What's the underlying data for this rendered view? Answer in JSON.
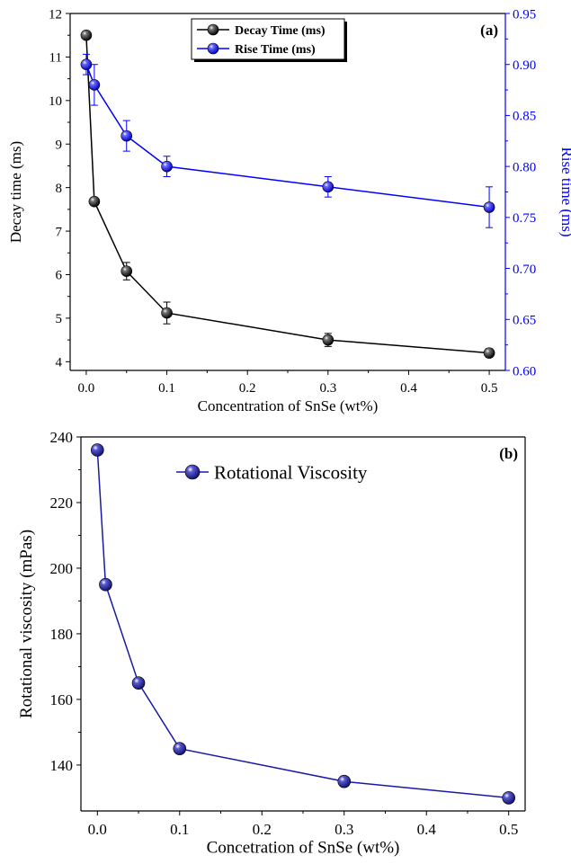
{
  "chart_data": [
    {
      "type": "line",
      "panel_label": "(a)",
      "xlabel": "Concentration of SnSe (wt%)",
      "ylabel": "Decay time (ms)",
      "y2label": "Rise time (ms)",
      "xlim": [
        -0.02,
        0.52
      ],
      "ylim": [
        3.8,
        12
      ],
      "y2lim": [
        0.6,
        0.95
      ],
      "xticks": [
        0.0,
        0.1,
        0.2,
        0.3,
        0.4,
        0.5
      ],
      "xtick_labels": [
        "0.0",
        "0.1",
        "0.2",
        "0.3",
        "0.4",
        "0.5"
      ],
      "yticks": [
        4,
        5,
        6,
        7,
        8,
        9,
        10,
        11,
        12
      ],
      "ytick_labels": [
        "4",
        "5",
        "6",
        "7",
        "8",
        "9",
        "10",
        "11",
        "12"
      ],
      "y2ticks": [
        0.6,
        0.65,
        0.7,
        0.75,
        0.8,
        0.85,
        0.9,
        0.95
      ],
      "y2tick_labels": [
        "0.60",
        "0.65",
        "0.70",
        "0.75",
        "0.80",
        "0.85",
        "0.90",
        "0.95"
      ],
      "legend_placement": "top-center",
      "grid": false,
      "series": [
        {
          "name": "Decay Time (ms)",
          "axis": "left",
          "color": "#000000",
          "x": [
            0.0,
            0.01,
            0.05,
            0.1,
            0.3,
            0.5
          ],
          "y": [
            11.5,
            7.68,
            6.08,
            5.12,
            4.5,
            4.2
          ],
          "error": [
            0.0,
            0.0,
            0.2,
            0.25,
            0.15,
            0.1
          ]
        },
        {
          "name": "Rise Time (ms)",
          "axis": "right",
          "color": "#0000ff",
          "x": [
            0.0,
            0.01,
            0.05,
            0.1,
            0.3,
            0.5
          ],
          "y": [
            0.9,
            0.88,
            0.83,
            0.8,
            0.78,
            0.76
          ],
          "error": [
            0.01,
            0.02,
            0.015,
            0.01,
            0.01,
            0.02
          ]
        }
      ]
    },
    {
      "type": "line",
      "panel_label": "(b)",
      "xlabel": "Concetration of SnSe (wt%)",
      "ylabel": "Rotational viscosity (mPas)",
      "xlim": [
        -0.02,
        0.52
      ],
      "ylim": [
        126,
        240
      ],
      "xticks": [
        0.0,
        0.1,
        0.2,
        0.3,
        0.4,
        0.5
      ],
      "xtick_labels": [
        "0.0",
        "0.1",
        "0.2",
        "0.3",
        "0.4",
        "0.5"
      ],
      "yticks": [
        140,
        160,
        180,
        200,
        220,
        240
      ],
      "ytick_labels": [
        "140",
        "160",
        "180",
        "200",
        "220",
        "240"
      ],
      "legend_placement": "top-center",
      "grid": false,
      "series": [
        {
          "name": "Rotational Viscosity",
          "color": "#1a1aa8",
          "x": [
            0.0,
            0.01,
            0.05,
            0.1,
            0.3,
            0.5
          ],
          "y": [
            236,
            195,
            165,
            145,
            135,
            130
          ]
        }
      ]
    }
  ]
}
